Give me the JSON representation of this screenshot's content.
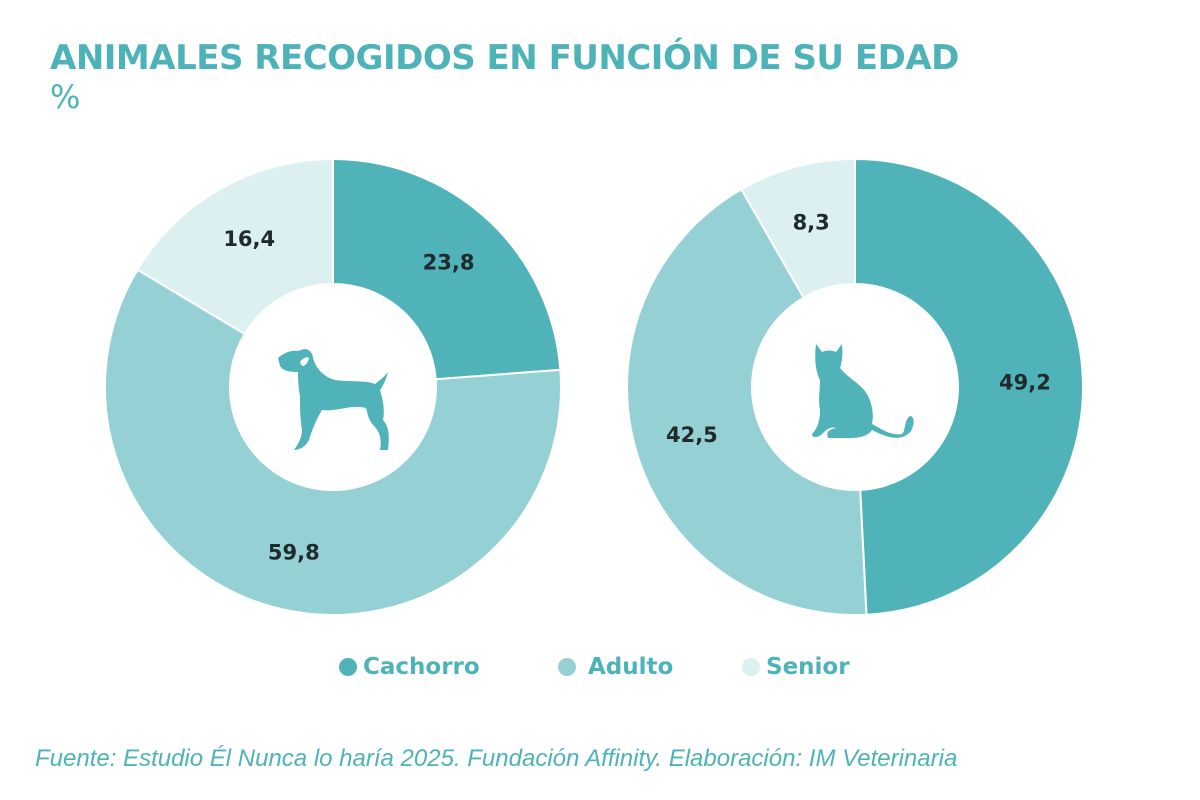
{
  "title": "ANIMALES RECOGIDOS EN FUNCIÓN DE SU EDAD",
  "unit": "%",
  "source": "Fuente: Estudio Él Nunca lo haría 2025. Fundación Affinity. Elaboración: IM Veterinaria",
  "colors": {
    "Cachorro": "#4fb3b9",
    "Adulto": "#95d1d4",
    "Senior": "#dcf0f1",
    "text": "#4db3b9"
  },
  "legend": [
    {
      "label": "Cachorro",
      "color": "#4fb3b9"
    },
    {
      "label": "Adulto",
      "color": "#95d1d4"
    },
    {
      "label": "Senior",
      "color": "#dcf0f1"
    }
  ],
  "chart_data": [
    {
      "type": "pie",
      "variant": "donut",
      "animal": "dog",
      "icon": "dog-icon",
      "title": "Perros",
      "categories": [
        "Cachorro",
        "Adulto",
        "Senior"
      ],
      "values": [
        23.8,
        59.8,
        16.4
      ],
      "labels": [
        "23,8",
        "59,8",
        "16,4"
      ]
    },
    {
      "type": "pie",
      "variant": "donut",
      "animal": "cat",
      "icon": "cat-icon",
      "title": "Gatos",
      "categories": [
        "Cachorro",
        "Adulto",
        "Senior"
      ],
      "values": [
        49.2,
        42.5,
        8.3
      ],
      "labels": [
        "49,2",
        "42,5",
        "8,3"
      ]
    }
  ]
}
